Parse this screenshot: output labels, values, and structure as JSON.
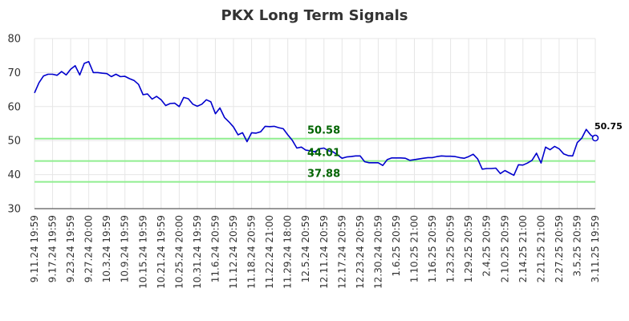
{
  "chart_data": {
    "type": "line",
    "title": "PKX Long Term Signals",
    "ylim": [
      30,
      80
    ],
    "y_ticks": [
      30,
      40,
      50,
      60,
      70,
      80
    ],
    "grid": true,
    "x_tick_labels": [
      "9.11.24 19:59",
      "9.17.24 19:59",
      "9.23.24 19:59",
      "9.27.24 20:00",
      "10.3.24 19:59",
      "10.9.24 19:59",
      "10.15.24 19:59",
      "10.21.24 19:59",
      "10.25.24 20:00",
      "10.31.24 19:59",
      "11.6.24 20:59",
      "11.12.24 20:59",
      "11.18.24 20:59",
      "11.22.24 21:00",
      "11.29.24 18:00",
      "12.5.24 20:59",
      "12.11.24 20:59",
      "12.17.24 20:59",
      "12.23.24 20:59",
      "12.30.24 20:59",
      "1.6.25 20:59",
      "1.10.25 21:00",
      "1.16.25 20:59",
      "1.23.25 20:59",
      "1.29.25 20:59",
      "2.4.25 20:59",
      "2.10.25 20:59",
      "2.14.25 21:00",
      "2.21.25 21:00",
      "2.27.25 20:59",
      "3.5.25 20:59",
      "3.11.25 19:59"
    ],
    "series": [
      {
        "color": "#0000cd",
        "values": [
          64.0,
          67.0,
          69.0,
          69.5,
          69.5,
          69.2,
          70.3,
          69.3,
          71.0,
          72.0,
          69.3,
          72.7,
          73.2,
          70.0,
          70.0,
          69.8,
          69.7,
          68.8,
          69.5,
          68.8,
          68.9,
          68.2,
          67.7,
          66.5,
          63.5,
          63.7,
          62.2,
          63.0,
          62.0,
          60.3,
          60.9,
          61.0,
          60.0,
          62.7,
          62.3,
          60.7,
          60.1,
          60.7,
          62.0,
          61.4,
          57.9,
          59.6,
          56.8,
          55.5,
          54.0,
          51.7,
          52.3,
          49.7,
          52.3,
          52.2,
          52.6,
          54.2,
          54.1,
          54.2,
          53.8,
          53.5,
          51.7,
          50.1,
          47.8,
          48.1,
          47.2,
          47.0,
          46.7,
          47.6,
          47.8,
          47.0,
          46.7,
          45.8,
          44.8,
          45.2,
          45.3,
          45.5,
          45.5,
          43.8,
          43.5,
          43.5,
          43.5,
          42.7,
          44.4,
          44.9,
          44.9,
          44.9,
          44.8,
          44.2,
          44.4,
          44.6,
          44.8,
          45.0,
          45.0,
          45.3,
          45.5,
          45.4,
          45.4,
          45.3,
          45.0,
          44.8,
          45.3,
          46.0,
          44.6,
          41.6,
          41.8,
          41.8,
          41.9,
          40.3,
          41.2,
          40.5,
          39.8,
          42.9,
          42.8,
          43.4,
          44.2,
          46.3,
          43.4,
          48.1,
          47.3,
          48.3,
          47.6,
          46.1,
          45.6,
          45.5,
          49.4,
          50.7,
          53.3,
          51.6,
          50.75
        ]
      }
    ],
    "reference_lines": [
      {
        "value": 50.58,
        "label": "50.58",
        "color": "#90ee90"
      },
      {
        "value": 44.01,
        "label": "44.01",
        "color": "#90ee90"
      },
      {
        "value": 37.88,
        "label": "37.88",
        "color": "#90ee90"
      }
    ],
    "last_value_label": "50.75",
    "label_color": "#006400"
  }
}
